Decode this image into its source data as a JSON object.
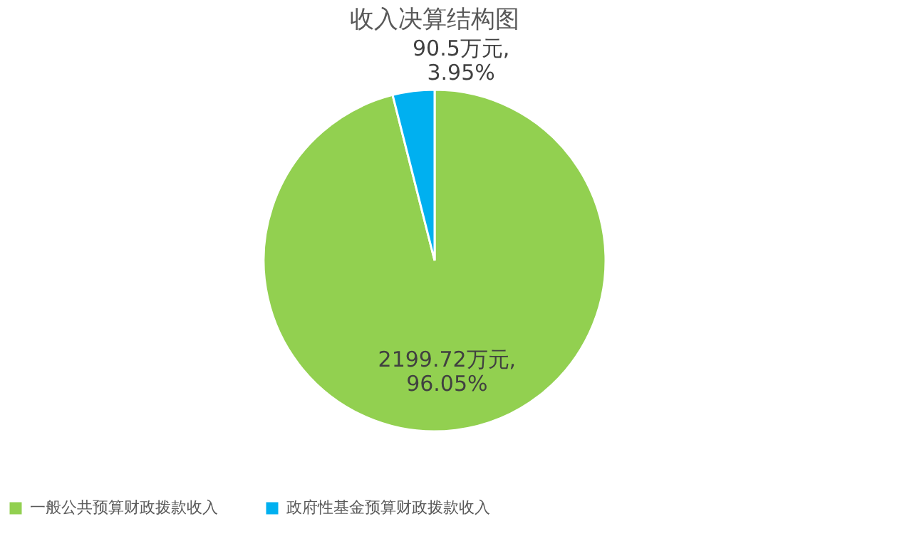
{
  "chart_data": {
    "type": "pie",
    "title": "收入决算结构图",
    "categories": [
      "一般公共预算财政拨款收入",
      "政府性基金预算财政拨款收入"
    ],
    "values": [
      2199.72,
      90.5
    ],
    "colors": [
      "#92d050",
      "#00b0f0"
    ],
    "value_labels": [
      "2199.72万元, 96.05%",
      "90.5万元, 3.95%"
    ],
    "legend": "bottom"
  }
}
